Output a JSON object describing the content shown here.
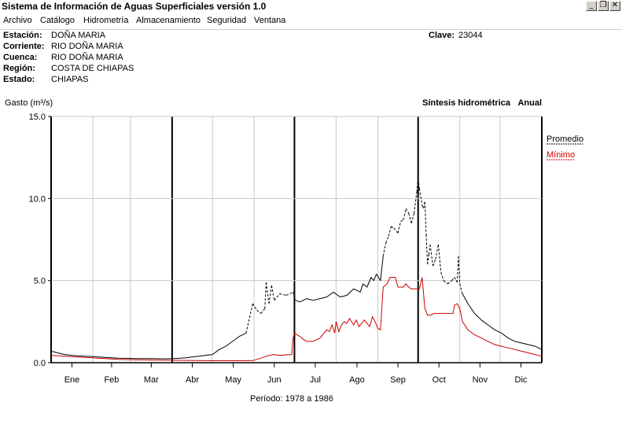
{
  "window": {
    "title": "Sistema de Información de Aguas Superficiales  versión 1.0",
    "controls": [
      "minimize",
      "restore",
      "close"
    ]
  },
  "menu": [
    "Archivo",
    "Catálogo",
    "Hidrometría",
    "Almacenamiento",
    "Seguridad",
    "Ventana"
  ],
  "station": {
    "estacion_label": "Estación:",
    "estacion": "DOÑA MARIA",
    "corriente_label": "Corriente:",
    "corriente": "RIO DOÑA MARIA",
    "cuenca_label": "Cuenca:",
    "cuenca": "RIO DOÑA MARIA",
    "region_label": "Región:",
    "region": "COSTA DE CHIAPAS",
    "estado_label": "Estado:",
    "estado": "CHIAPAS",
    "clave_label": "Clave:",
    "clave": "23044"
  },
  "chart_header": {
    "ylabel": "Gasto (m³/s)",
    "title": "Síntesis hidrométrica",
    "mode": "Anual"
  },
  "footer": {
    "periodo_label": "Período:",
    "periodo": "1978 a 1986"
  },
  "chart_data": {
    "type": "line",
    "ylim": [
      0,
      15
    ],
    "yticks": [
      "0.0",
      "5.0",
      "10.0",
      "15.0"
    ],
    "ytick_values": [
      0,
      5,
      10,
      15
    ],
    "months": [
      "Ene",
      "Feb",
      "Mar",
      "Abr",
      "May",
      "Jun",
      "Jul",
      "Ago",
      "Sep",
      "Oct",
      "Nov",
      "Dic"
    ],
    "grid": true,
    "legend_position": "right",
    "series": [
      {
        "name": "Promedio",
        "color": "#000000",
        "points": [
          [
            0,
            0.7
          ],
          [
            5,
            0.6
          ],
          [
            10,
            0.5
          ],
          [
            15,
            0.45
          ],
          [
            20,
            0.42
          ],
          [
            25,
            0.4
          ],
          [
            30,
            0.38
          ],
          [
            35,
            0.35
          ],
          [
            40,
            0.32
          ],
          [
            45,
            0.3
          ],
          [
            50,
            0.28
          ],
          [
            55,
            0.27
          ],
          [
            60,
            0.26
          ],
          [
            65,
            0.25
          ],
          [
            70,
            0.25
          ],
          [
            75,
            0.25
          ],
          [
            80,
            0.24
          ],
          [
            85,
            0.24
          ],
          [
            90,
            0.25
          ],
          [
            95,
            0.27
          ],
          [
            100,
            0.3
          ],
          [
            105,
            0.35
          ],
          [
            110,
            0.4
          ],
          [
            115,
            0.45
          ],
          [
            120,
            0.5
          ],
          [
            125,
            0.8
          ],
          [
            130,
            1.0
          ],
          [
            135,
            1.3
          ],
          [
            140,
            1.6
          ],
          [
            145,
            1.8
          ],
          [
            150,
            3.6
          ],
          [
            153,
            3.2
          ],
          [
            156,
            3.0
          ],
          [
            159,
            3.3
          ],
          [
            160,
            4.9
          ],
          [
            162,
            3.6
          ],
          [
            164,
            4.7
          ],
          [
            166,
            3.8
          ],
          [
            170,
            4.2
          ],
          [
            175,
            4.1
          ],
          [
            180,
            4.3
          ],
          [
            182,
            3.8
          ],
          [
            185,
            3.7
          ],
          [
            190,
            3.9
          ],
          [
            195,
            3.8
          ],
          [
            200,
            3.9
          ],
          [
            205,
            4.0
          ],
          [
            210,
            4.3
          ],
          [
            215,
            4.0
          ],
          [
            220,
            4.1
          ],
          [
            225,
            4.5
          ],
          [
            230,
            4.3
          ],
          [
            232,
            4.8
          ],
          [
            235,
            4.6
          ],
          [
            238,
            5.2
          ],
          [
            240,
            5.0
          ],
          [
            242,
            5.4
          ],
          [
            245,
            5.0
          ],
          [
            247,
            6.5
          ],
          [
            249,
            7.3
          ],
          [
            251,
            7.7
          ],
          [
            253,
            8.3
          ],
          [
            255,
            8.2
          ],
          [
            258,
            7.9
          ],
          [
            260,
            8.6
          ],
          [
            262,
            8.7
          ],
          [
            264,
            9.4
          ],
          [
            266,
            9.1
          ],
          [
            268,
            8.5
          ],
          [
            270,
            9.1
          ],
          [
            272,
            10.4
          ],
          [
            273,
            11.2
          ],
          [
            274,
            10.6
          ],
          [
            276,
            9.6
          ],
          [
            277,
            9.4
          ],
          [
            278,
            9.8
          ],
          [
            279,
            7.8
          ],
          [
            280,
            6.0
          ],
          [
            281,
            6.6
          ],
          [
            282,
            7.2
          ],
          [
            284,
            5.9
          ],
          [
            286,
            6.3
          ],
          [
            288,
            7.2
          ],
          [
            290,
            5.5
          ],
          [
            292,
            5.0
          ],
          [
            295,
            4.8
          ],
          [
            298,
            5.0
          ],
          [
            300,
            5.2
          ],
          [
            302,
            4.9
          ],
          [
            303,
            6.5
          ],
          [
            304,
            4.8
          ],
          [
            306,
            4.2
          ],
          [
            310,
            3.6
          ],
          [
            315,
            3.0
          ],
          [
            320,
            2.6
          ],
          [
            325,
            2.3
          ],
          [
            330,
            2.0
          ],
          [
            335,
            1.8
          ],
          [
            340,
            1.5
          ],
          [
            345,
            1.3
          ],
          [
            350,
            1.2
          ],
          [
            355,
            1.1
          ],
          [
            360,
            1.0
          ],
          [
            365,
            0.8
          ]
        ]
      },
      {
        "name": "Mínimo",
        "color": "#cc0000",
        "points": [
          [
            0,
            0.45
          ],
          [
            10,
            0.4
          ],
          [
            20,
            0.35
          ],
          [
            30,
            0.3
          ],
          [
            40,
            0.25
          ],
          [
            50,
            0.2
          ],
          [
            60,
            0.18
          ],
          [
            70,
            0.17
          ],
          [
            80,
            0.16
          ],
          [
            90,
            0.15
          ],
          [
            100,
            0.14
          ],
          [
            110,
            0.13
          ],
          [
            120,
            0.12
          ],
          [
            130,
            0.12
          ],
          [
            140,
            0.12
          ],
          [
            150,
            0.13
          ],
          [
            155,
            0.25
          ],
          [
            160,
            0.4
          ],
          [
            165,
            0.5
          ],
          [
            170,
            0.45
          ],
          [
            179,
            0.5
          ],
          [
            180,
            1.5
          ],
          [
            181,
            1.8
          ],
          [
            185,
            1.6
          ],
          [
            188,
            1.4
          ],
          [
            190,
            1.3
          ],
          [
            195,
            1.3
          ],
          [
            200,
            1.5
          ],
          [
            205,
            2.0
          ],
          [
            207,
            1.9
          ],
          [
            209,
            2.3
          ],
          [
            211,
            1.8
          ],
          [
            212,
            2.5
          ],
          [
            214,
            1.9
          ],
          [
            216,
            2.3
          ],
          [
            218,
            2.5
          ],
          [
            220,
            2.4
          ],
          [
            222,
            2.7
          ],
          [
            225,
            2.3
          ],
          [
            227,
            2.6
          ],
          [
            229,
            2.2
          ],
          [
            231,
            2.4
          ],
          [
            233,
            2.6
          ],
          [
            235,
            2.4
          ],
          [
            237,
            2.2
          ],
          [
            239,
            2.8
          ],
          [
            241,
            2.5
          ],
          [
            243,
            2.1
          ],
          [
            245,
            2.0
          ],
          [
            247,
            4.6
          ],
          [
            250,
            4.8
          ],
          [
            252,
            5.2
          ],
          [
            256,
            5.2
          ],
          [
            258,
            4.6
          ],
          [
            262,
            4.6
          ],
          [
            264,
            4.8
          ],
          [
            266,
            4.6
          ],
          [
            268,
            4.5
          ],
          [
            270,
            4.5
          ],
          [
            272,
            4.5
          ],
          [
            274,
            4.5
          ],
          [
            276,
            5.2
          ],
          [
            278,
            3.3
          ],
          [
            280,
            2.9
          ],
          [
            282,
            2.9
          ],
          [
            285,
            3.0
          ],
          [
            290,
            3.0
          ],
          [
            295,
            3.0
          ],
          [
            299,
            3.0
          ],
          [
            300,
            3.5
          ],
          [
            302,
            3.6
          ],
          [
            304,
            3.3
          ],
          [
            306,
            2.5
          ],
          [
            310,
            2.0
          ],
          [
            315,
            1.7
          ],
          [
            320,
            1.5
          ],
          [
            325,
            1.3
          ],
          [
            330,
            1.1
          ],
          [
            335,
            1.0
          ],
          [
            340,
            0.9
          ],
          [
            345,
            0.8
          ],
          [
            350,
            0.7
          ],
          [
            355,
            0.6
          ],
          [
            360,
            0.5
          ],
          [
            365,
            0.4
          ]
        ]
      }
    ]
  }
}
